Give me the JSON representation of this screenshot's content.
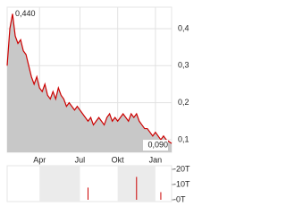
{
  "chart_data": [
    {
      "type": "line",
      "categories": [
        null,
        null,
        null,
        null,
        null,
        null,
        null,
        null,
        null,
        null,
        null,
        null,
        "Apr",
        null,
        null,
        null,
        null,
        null,
        null,
        null,
        null,
        null,
        null,
        null,
        null,
        null,
        null,
        "Jul",
        null,
        null,
        null,
        null,
        null,
        null,
        null,
        null,
        null,
        null,
        null,
        null,
        null,
        "Okt",
        null,
        null,
        null,
        null,
        null,
        null,
        null,
        null,
        null,
        null,
        null,
        null,
        null,
        "Jan",
        null,
        null,
        null,
        null,
        null,
        null
      ],
      "series": [
        {
          "color": "#cc0000",
          "fill": "#c8c8c8",
          "values": [
            0.3,
            0.4,
            0.44,
            0.38,
            0.36,
            0.37,
            0.34,
            0.33,
            0.3,
            0.27,
            0.25,
            0.27,
            0.24,
            0.23,
            0.25,
            0.22,
            0.21,
            0.23,
            0.21,
            0.24,
            0.22,
            0.21,
            0.19,
            0.2,
            0.19,
            0.18,
            0.19,
            0.18,
            0.17,
            0.16,
            0.15,
            0.16,
            0.14,
            0.15,
            0.16,
            0.15,
            0.14,
            0.16,
            0.17,
            0.15,
            0.16,
            0.15,
            0.16,
            0.17,
            0.16,
            0.15,
            0.17,
            0.16,
            0.17,
            0.15,
            0.14,
            0.13,
            0.13,
            0.12,
            0.11,
            0.12,
            0.11,
            0.1,
            0.11,
            0.1,
            0.095,
            0.09
          ]
        }
      ],
      "annotations": [
        {
          "value": 0.44,
          "label": "0,440"
        },
        {
          "value": 0.09,
          "label": "0,090"
        }
      ],
      "ylim": [
        0.066,
        0.458
      ],
      "yticks": [
        {
          "value": 0.1,
          "label": "0,1"
        },
        {
          "value": 0.2,
          "label": "0,2"
        },
        {
          "value": 0.3,
          "label": "0,3"
        },
        {
          "value": 0.4,
          "label": "0,4"
        }
      ],
      "grid": true
    },
    {
      "type": "bar",
      "color": "#cc0000",
      "values": [
        0,
        0,
        0,
        0,
        0,
        0,
        0,
        0,
        0,
        0,
        0,
        0,
        0,
        0,
        0,
        0,
        0,
        0,
        0,
        0,
        0,
        0,
        0,
        0,
        0,
        0,
        0,
        0,
        0,
        0,
        8000,
        0,
        0,
        0,
        0,
        0,
        0,
        0,
        0,
        0,
        0,
        0,
        0,
        0,
        0,
        0,
        0,
        0,
        15000,
        0,
        0,
        0,
        0,
        0,
        0,
        0,
        0,
        5000,
        0,
        0,
        0,
        0
      ],
      "ylim": [
        0,
        22000
      ],
      "yticks": [
        {
          "value": 20000,
          "label": "-20T"
        },
        {
          "value": 10000,
          "label": "-10T"
        },
        {
          "value": 0,
          "label": "-0T"
        }
      ]
    }
  ]
}
